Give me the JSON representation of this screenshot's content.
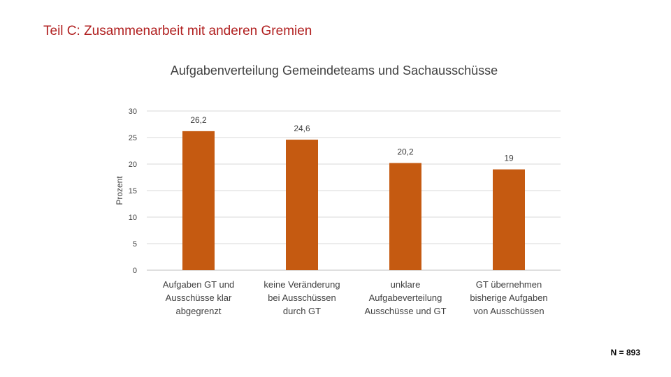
{
  "page": {
    "title": "Teil C: Zusammenarbeit mit anderen Gremien",
    "footnote": "N = 893"
  },
  "chart_data": {
    "type": "bar",
    "title": "Aufgabenverteilung Gemeindeteams und Sachausschüsse",
    "ylabel": "Prozent",
    "ylim": [
      0,
      30
    ],
    "yticks": [
      0,
      5,
      10,
      15,
      20,
      25,
      30
    ],
    "grid": true,
    "legend": "none",
    "bar_color": "#c55a11",
    "categories": [
      [
        "Aufgaben GT und",
        "Ausschüsse klar",
        "abgegrenzt"
      ],
      [
        "keine Veränderung",
        "bei Ausschüssen",
        "durch GT"
      ],
      [
        "unklare",
        "Aufgabeverteilung",
        "Ausschüsse und GT"
      ],
      [
        "GT übernehmen",
        "bisherige Aufgaben",
        "von Ausschüssen"
      ]
    ],
    "values": [
      26.2,
      24.6,
      20.2,
      19
    ],
    "value_labels": [
      "26,2",
      "24,6",
      "20,2",
      "19"
    ]
  }
}
